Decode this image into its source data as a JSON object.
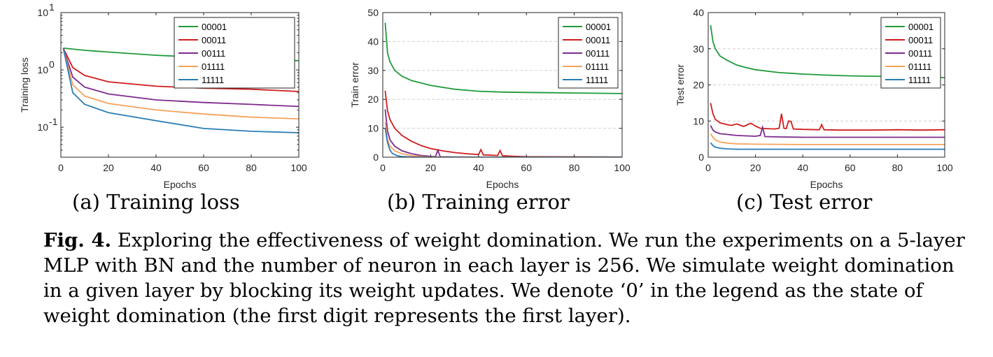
{
  "chart_data": [
    {
      "type": "line",
      "ylabel": "Training loss",
      "xlabel": "Epochs",
      "yscale": "log",
      "ylim": [
        0.03,
        10
      ],
      "xlim": [
        0,
        100
      ],
      "xticks": [
        "0",
        "20",
        "40",
        "60",
        "80",
        "100"
      ],
      "yticks": [
        {
          "v": 0.1,
          "base": "10",
          "exp": "-1"
        },
        {
          "v": 1,
          "base": "10",
          "exp": "0"
        },
        {
          "v": 10,
          "base": "10",
          "exp": "1"
        }
      ],
      "legend": "top-right",
      "series": [
        {
          "name": "00001",
          "color": "#1f9a3a",
          "x": [
            1,
            10,
            20,
            40,
            60,
            80,
            100
          ],
          "y": [
            2.4,
            2.2,
            2.05,
            1.8,
            1.65,
            1.5,
            1.45
          ]
        },
        {
          "name": "00011",
          "color": "#d01c1c",
          "x": [
            1,
            5,
            10,
            20,
            40,
            60,
            80,
            100
          ],
          "y": [
            2.4,
            1.1,
            0.8,
            0.62,
            0.52,
            0.48,
            0.46,
            0.42
          ]
        },
        {
          "name": "00111",
          "color": "#7e2a8f",
          "x": [
            1,
            5,
            10,
            20,
            40,
            60,
            80,
            100
          ],
          "y": [
            2.4,
            0.75,
            0.5,
            0.38,
            0.3,
            0.27,
            0.25,
            0.23
          ]
        },
        {
          "name": "01111",
          "color": "#f5a35c",
          "x": [
            1,
            5,
            10,
            20,
            40,
            60,
            80,
            100
          ],
          "y": [
            2.4,
            0.55,
            0.35,
            0.26,
            0.2,
            0.17,
            0.15,
            0.14
          ]
        },
        {
          "name": "11111",
          "color": "#2a7db5",
          "x": [
            1,
            5,
            10,
            20,
            40,
            60,
            80,
            100
          ],
          "y": [
            2.4,
            0.4,
            0.25,
            0.18,
            0.13,
            0.095,
            0.085,
            0.08
          ]
        }
      ]
    },
    {
      "type": "line",
      "ylabel": "Train error",
      "xlabel": "Epochs",
      "ylim": [
        0,
        50
      ],
      "xlim": [
        0,
        100
      ],
      "xticks": [
        "0",
        "20",
        "40",
        "60",
        "80",
        "100"
      ],
      "yticks": [
        0,
        10,
        20,
        30,
        40,
        50
      ],
      "grid": true,
      "legend": "top-right",
      "series": [
        {
          "name": "00001",
          "color": "#1f9a3a",
          "x": [
            1,
            2,
            3,
            5,
            8,
            12,
            20,
            30,
            40,
            50,
            60,
            70,
            80,
            90,
            100
          ],
          "y": [
            46.5,
            36,
            33,
            30,
            28,
            26.5,
            24.8,
            23.5,
            22.8,
            22.5,
            22.4,
            22.3,
            22.2,
            22.1,
            22.0
          ]
        },
        {
          "name": "00011",
          "color": "#d01c1c",
          "x": [
            1,
            2,
            3,
            5,
            8,
            12,
            16,
            20,
            25,
            30,
            35,
            40,
            41,
            42,
            48,
            49,
            50,
            55,
            60,
            100
          ],
          "y": [
            23,
            16,
            13,
            10,
            7.5,
            5.5,
            4,
            3,
            2.2,
            1.6,
            1.2,
            0.9,
            2.6,
            0.8,
            0.6,
            2.3,
            0.5,
            0.3,
            0.15,
            0.05
          ]
        },
        {
          "name": "00111",
          "color": "#7e2a8f",
          "x": [
            1,
            2,
            3,
            5,
            8,
            12,
            16,
            20,
            22,
            23,
            24,
            30,
            40,
            100
          ],
          "y": [
            16.5,
            9,
            6,
            3.8,
            2.2,
            1.2,
            0.6,
            0.3,
            0.2,
            2.4,
            0.15,
            0.05,
            0.02,
            0.01
          ]
        },
        {
          "name": "01111",
          "color": "#f5a35c",
          "x": [
            1,
            2,
            3,
            5,
            8,
            12,
            18,
            30,
            100
          ],
          "y": [
            12,
            6,
            3.8,
            2.2,
            1.2,
            0.5,
            0.15,
            0.03,
            0.01
          ]
        },
        {
          "name": "11111",
          "color": "#2a7db5",
          "x": [
            1,
            2,
            3,
            4,
            6,
            8,
            12,
            20,
            100
          ],
          "y": [
            10,
            5,
            2.5,
            1.3,
            0.5,
            0.2,
            0.05,
            0.01,
            0.0
          ]
        }
      ]
    },
    {
      "type": "line",
      "ylabel": "Test error",
      "xlabel": "Epochs",
      "ylim": [
        0,
        40
      ],
      "xlim": [
        0,
        100
      ],
      "xticks": [
        "0",
        "20",
        "40",
        "60",
        "80",
        "100"
      ],
      "yticks": [
        0,
        10,
        20,
        30,
        40
      ],
      "grid": true,
      "legend": "top-right",
      "series": [
        {
          "name": "00001",
          "color": "#1f9a3a",
          "x": [
            1,
            2,
            3,
            5,
            8,
            12,
            16,
            20,
            30,
            40,
            50,
            60,
            70,
            80,
            90,
            100
          ],
          "y": [
            36.5,
            32,
            30,
            28,
            26.8,
            25.5,
            24.8,
            24.2,
            23.4,
            23,
            22.7,
            22.5,
            22.4,
            22.3,
            22.2,
            22.0
          ]
        },
        {
          "name": "00011",
          "color": "#d01c1c",
          "x": [
            1,
            2,
            3,
            5,
            8,
            10,
            12,
            15,
            18,
            20,
            22,
            25,
            28,
            30,
            31,
            32,
            33,
            34,
            35,
            36,
            40,
            47,
            48,
            49,
            55,
            60,
            70,
            80,
            90,
            100
          ],
          "y": [
            15,
            12,
            10.5,
            9.5,
            9,
            8.8,
            9.2,
            8.5,
            9.4,
            8.6,
            8,
            7.9,
            7.8,
            8,
            12,
            8,
            7.9,
            10,
            9.9,
            7.8,
            7.7,
            7.6,
            9,
            7.6,
            7.5,
            7.5,
            7.5,
            7.6,
            7.5,
            7.6
          ]
        },
        {
          "name": "00111",
          "color": "#7e2a8f",
          "x": [
            1,
            2,
            3,
            5,
            8,
            12,
            16,
            20,
            22,
            23,
            24,
            30,
            40,
            60,
            80,
            100
          ],
          "y": [
            8.8,
            7.5,
            7,
            6.5,
            6.3,
            6,
            5.9,
            5.8,
            6,
            8.3,
            5.7,
            5.6,
            5.5,
            5.5,
            5.5,
            5.5
          ]
        },
        {
          "name": "01111",
          "color": "#f5a35c",
          "x": [
            1,
            2,
            3,
            5,
            8,
            12,
            20,
            40,
            60,
            80,
            100
          ],
          "y": [
            6.5,
            5.5,
            4.8,
            4.2,
            3.9,
            3.7,
            3.6,
            3.5,
            3.5,
            3.5,
            3.5
          ]
        },
        {
          "name": "11111",
          "color": "#2a7db5",
          "x": [
            1,
            2,
            3,
            5,
            8,
            12,
            20,
            40,
            60,
            80,
            100
          ],
          "y": [
            4,
            3.2,
            2.8,
            2.5,
            2.3,
            2.2,
            2.2,
            2.2,
            2.2,
            2.2,
            2.2
          ]
        }
      ]
    }
  ],
  "subcaptions": [
    "(a) Training loss",
    "(b) Training error",
    "(c) Test error"
  ],
  "caption": {
    "label": "Fig. 4.",
    "text": "Exploring the effectiveness of weight domination. We run the experiments on a 5-layer MLP with BN and the number of neuron in each layer is 256. We simulate weight domination in a given layer by blocking its weight updates. We denote ‘0’ in the legend as the state of weight domination (the first digit represents the first layer)."
  }
}
